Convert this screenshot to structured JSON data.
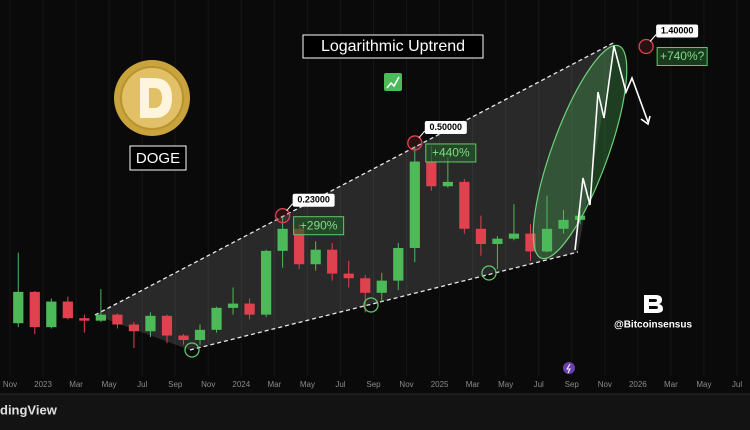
{
  "chart_data": {
    "type": "candlestick",
    "title": "Logarithmic Uptrend",
    "symbol": "DOGE",
    "x": [
      "2022-11",
      "2022-12",
      "2023-01",
      "2023-02",
      "2023-03",
      "2023-04",
      "2023-05",
      "2023-06",
      "2023-07",
      "2023-08",
      "2023-09",
      "2023-10",
      "2023-11",
      "2023-12",
      "2024-01",
      "2024-02",
      "2024-03",
      "2024-04",
      "2024-05",
      "2024-06",
      "2024-07",
      "2024-08",
      "2024-09",
      "2024-10",
      "2024-11",
      "2024-12",
      "2025-01",
      "2025-02",
      "2025-03",
      "2025-04",
      "2025-05",
      "2025-06",
      "2025-07",
      "2025-08",
      "2025-09"
    ],
    "open": [
      0.073,
      0.102,
      0.07,
      0.092,
      0.077,
      0.075,
      0.08,
      0.072,
      0.067,
      0.079,
      0.064,
      0.061,
      0.068,
      0.086,
      0.09,
      0.08,
      0.158,
      0.2,
      0.137,
      0.16,
      0.124,
      0.118,
      0.101,
      0.115,
      0.163,
      0.41,
      0.315,
      0.33,
      0.2,
      0.17,
      0.18,
      0.19,
      0.157,
      0.2,
      0.22
    ],
    "high": [
      0.155,
      0.103,
      0.095,
      0.097,
      0.08,
      0.105,
      0.081,
      0.074,
      0.082,
      0.08,
      0.065,
      0.072,
      0.087,
      0.107,
      0.095,
      0.16,
      0.228,
      0.21,
      0.175,
      0.172,
      0.142,
      0.122,
      0.125,
      0.172,
      0.484,
      0.484,
      0.43,
      0.34,
      0.23,
      0.185,
      0.26,
      0.21,
      0.285,
      0.245,
      0.245
    ],
    "low": [
      0.07,
      0.065,
      0.069,
      0.076,
      0.066,
      0.074,
      0.069,
      0.056,
      0.063,
      0.059,
      0.058,
      0.058,
      0.066,
      0.08,
      0.076,
      0.078,
      0.132,
      0.13,
      0.128,
      0.115,
      0.107,
      0.082,
      0.092,
      0.104,
      0.14,
      0.3,
      0.31,
      0.19,
      0.15,
      0.13,
      0.177,
      0.142,
      0.156,
      0.19,
      0.21
    ],
    "close": [
      0.102,
      0.07,
      0.092,
      0.077,
      0.075,
      0.08,
      0.072,
      0.067,
      0.079,
      0.064,
      0.061,
      0.068,
      0.086,
      0.09,
      0.08,
      0.158,
      0.2,
      0.137,
      0.16,
      0.124,
      0.118,
      0.101,
      0.115,
      0.163,
      0.41,
      0.315,
      0.33,
      0.2,
      0.17,
      0.18,
      0.19,
      0.157,
      0.2,
      0.22,
      0.23
    ],
    "up_color": "#4cba58",
    "down_color": "#e0414f",
    "log_scale": true,
    "ylim": [
      0.042,
      2.3
    ],
    "xlim": [
      "2022-11",
      "2026-07"
    ],
    "xticks": [
      {
        "value": "2022-11",
        "label": "Nov"
      },
      {
        "value": "2023-01",
        "label": "2023"
      },
      {
        "value": "2023-03",
        "label": "Mar"
      },
      {
        "value": "2023-05",
        "label": "May"
      },
      {
        "value": "2023-07",
        "label": "Jul"
      },
      {
        "value": "2023-09",
        "label": "Sep"
      },
      {
        "value": "2023-11",
        "label": "Nov"
      },
      {
        "value": "2024-01",
        "label": "2024"
      },
      {
        "value": "2024-03",
        "label": "Mar"
      },
      {
        "value": "2024-05",
        "label": "May"
      },
      {
        "value": "2024-07",
        "label": "Jul"
      },
      {
        "value": "2024-09",
        "label": "Sep"
      },
      {
        "value": "2024-11",
        "label": "Nov"
      },
      {
        "value": "2025-01",
        "label": "2025"
      },
      {
        "value": "2025-03",
        "label": "Mar"
      },
      {
        "value": "2025-05",
        "label": "May"
      },
      {
        "value": "2025-07",
        "label": "Jul"
      },
      {
        "value": "2025-09",
        "label": "Sep"
      },
      {
        "value": "2025-11",
        "label": "Nov"
      },
      {
        "value": "2026-01",
        "label": "2026"
      },
      {
        "value": "2026-03",
        "label": "Mar"
      },
      {
        "value": "2026-05",
        "label": "May"
      },
      {
        "value": "2026-07",
        "label": "Jul"
      }
    ],
    "grid": true,
    "price_labels": [
      {
        "value": 0.23,
        "label": "0.23000",
        "x": "2024-03"
      },
      {
        "value": 0.5,
        "label": "0.50000",
        "x": "2024-11"
      },
      {
        "value": 1.4,
        "label": "1.40000",
        "x": "2026-01"
      }
    ],
    "gain_labels": [
      {
        "value": 290,
        "label": "+290%"
      },
      {
        "value": 440,
        "label": "+440%"
      },
      {
        "value": 740,
        "label": "+740%?"
      }
    ],
    "watermark": "@Bitcoinsensus"
  },
  "footer": {
    "brand": "dingView"
  }
}
